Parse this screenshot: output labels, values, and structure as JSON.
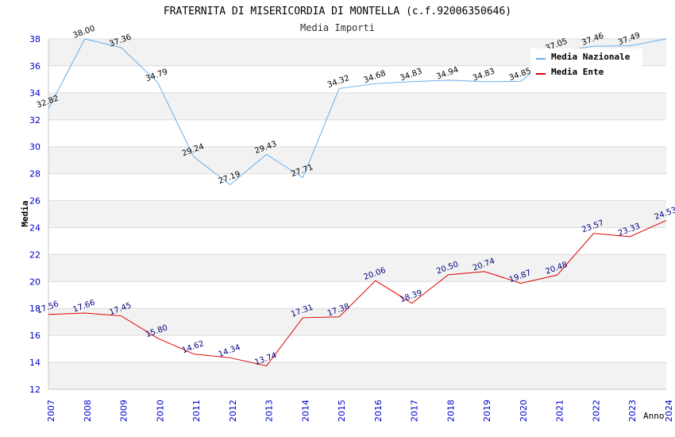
{
  "chart_data": {
    "type": "line",
    "title": "FRATERNITA DI MISERICORDIA DI MONTELLA (c.f.92006350646)",
    "subtitle": "Media Importi",
    "xlabel": "Anno",
    "ylabel": "Media",
    "ylim": [
      12,
      38
    ],
    "yticks": [
      "12",
      "14",
      "16",
      "18",
      "20",
      "22",
      "24",
      "26",
      "28",
      "30",
      "32",
      "34",
      "36",
      "38"
    ],
    "ytick_values": [
      12,
      14,
      16,
      18,
      20,
      22,
      24,
      26,
      28,
      30,
      32,
      34,
      36,
      38
    ],
    "categories": [
      "2007",
      "2008",
      "2009",
      "2010",
      "2011",
      "2012",
      "2013",
      "2014",
      "2015",
      "2016",
      "2017",
      "2018",
      "2019",
      "2020",
      "2021",
      "2022",
      "2023",
      "2024"
    ],
    "grid": true,
    "legend_position": "top-right",
    "series": [
      {
        "name": "Media Nazionale",
        "color": "#6aaee8",
        "label_color": "#000000",
        "values": [
          32.82,
          38.0,
          37.36,
          34.79,
          29.24,
          27.19,
          29.43,
          27.71,
          34.32,
          34.68,
          34.83,
          34.94,
          34.83,
          34.85,
          37.05,
          37.46,
          37.49,
          38.0
        ],
        "labels": [
          "32.82",
          "38.00",
          "37.36",
          "34.79",
          "29.24",
          "27.19",
          "29.43",
          "27.71",
          "34.32",
          "34.68",
          "34.83",
          "34.94",
          "34.83",
          "34.85",
          "37.05",
          "37.46",
          "37.49",
          ""
        ]
      },
      {
        "name": "Media Ente",
        "color": "#dd0000",
        "label_color": "#000080",
        "values": [
          17.56,
          17.66,
          17.45,
          15.8,
          14.62,
          14.34,
          13.74,
          17.31,
          17.38,
          20.06,
          18.39,
          20.5,
          20.74,
          19.87,
          20.48,
          23.57,
          23.33,
          24.53
        ],
        "labels": [
          "17.56",
          "17.66",
          "17.45",
          "15.80",
          "14.62",
          "14.34",
          "13.74",
          "17.31",
          "17.38",
          "20.06",
          "18.39",
          "20.50",
          "20.74",
          "19.87",
          "20.48",
          "23.57",
          "23.33",
          "24.53"
        ]
      }
    ]
  }
}
